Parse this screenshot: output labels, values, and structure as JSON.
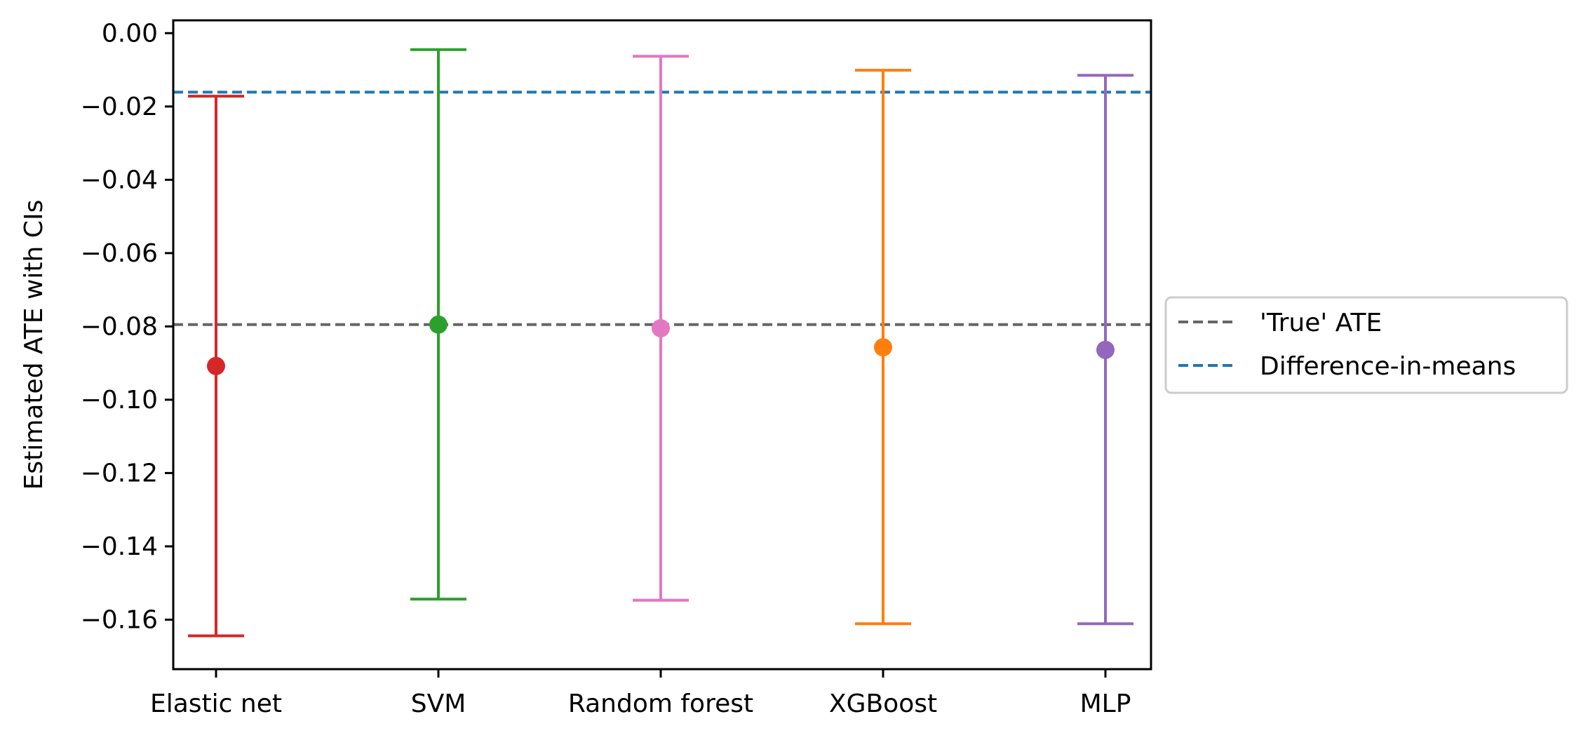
{
  "chart_data": {
    "type": "errorbar",
    "title": "",
    "xlabel": "",
    "ylabel": "Estimated ATE with CIs",
    "ylim": [
      -0.1735,
      0.0035
    ],
    "grid": false,
    "legend_placement": "right, outside plot area",
    "categories": [
      "Elastic net",
      "SVM",
      "Random forest",
      "XGBoost",
      "MLP"
    ],
    "estimates": [
      -0.0908,
      -0.0795,
      -0.0805,
      -0.0857,
      -0.0864
    ],
    "ci_lower": [
      -0.1644,
      -0.1544,
      -0.1547,
      -0.1611,
      -0.1611
    ],
    "ci_upper": [
      -0.0172,
      -0.0045,
      -0.0063,
      -0.0101,
      -0.0115
    ],
    "colors": [
      "#d62728",
      "#2ca02c",
      "#e377c2",
      "#ff7f0e",
      "#9467bd"
    ],
    "yticks": [
      0.0,
      -0.02,
      -0.04,
      -0.06,
      -0.08,
      -0.1,
      -0.12,
      -0.14,
      -0.16
    ],
    "ytick_labels": [
      "0.00",
      "−0.02",
      "−0.04",
      "−0.06",
      "−0.08",
      "−0.10",
      "−0.12",
      "−0.14",
      "−0.16"
    ],
    "reference_lines": [
      {
        "name": "'True' ATE",
        "value": -0.0795,
        "color": "#666666",
        "style": "dashed"
      },
      {
        "name": "Difference-in-means",
        "value": -0.0161,
        "color": "#1f77b4",
        "style": "dashed"
      }
    ]
  }
}
